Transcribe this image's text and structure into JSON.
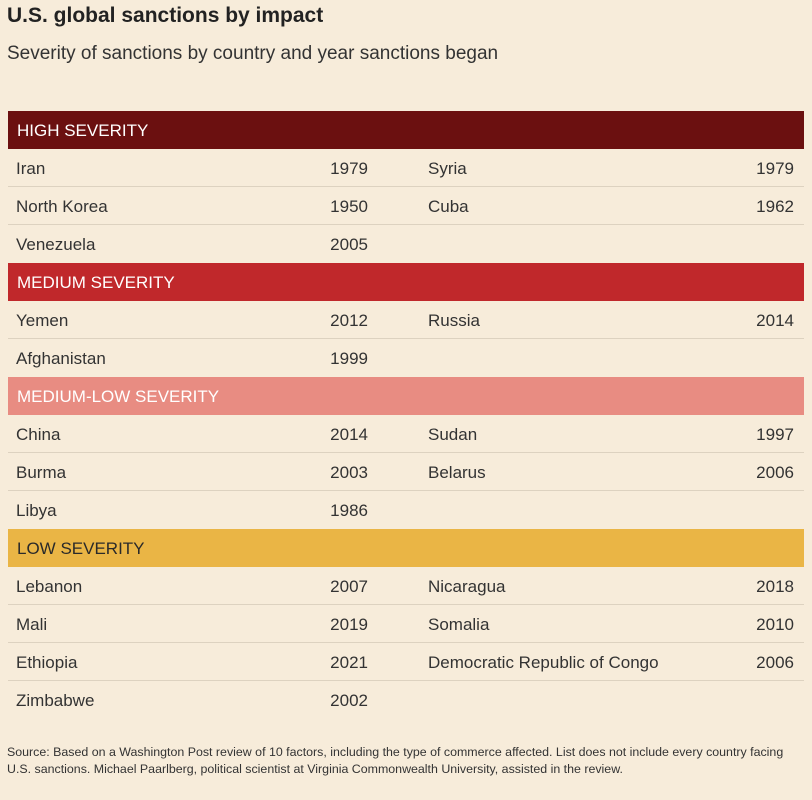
{
  "title": "U.S. global sanctions by impact",
  "subtitle": "Severity of sanctions by country and year sanctions began",
  "source": "Source: Based on a Washington Post review of 10 factors, including the type of commerce affected. List does not include every country facing U.S. sanctions. Michael Paarlberg, political scientist at Virginia Commonwealth University, assisted in the review.",
  "chart_data": {
    "type": "table",
    "title": "U.S. global sanctions by impact",
    "subtitle": "Severity of sanctions by country and year sanctions began",
    "groups": [
      {
        "label": "HIGH SEVERITY",
        "color": "#6b1010",
        "text_color": "#ffffff",
        "rows": [
          [
            {
              "country": "Iran",
              "year": "1979"
            },
            {
              "country": "Syria",
              "year": "1979"
            }
          ],
          [
            {
              "country": "North Korea",
              "year": "1950"
            },
            {
              "country": "Cuba",
              "year": "1962"
            }
          ],
          [
            {
              "country": "Venezuela",
              "year": "2005"
            }
          ]
        ]
      },
      {
        "label": "MEDIUM SEVERITY",
        "color": "#c0282b",
        "text_color": "#ffffff",
        "rows": [
          [
            {
              "country": "Yemen",
              "year": "2012"
            },
            {
              "country": "Russia",
              "year": "2014"
            }
          ],
          [
            {
              "country": "Afghanistan",
              "year": "1999"
            }
          ]
        ]
      },
      {
        "label": "MEDIUM-LOW SEVERITY",
        "color": "#e88c82",
        "text_color": "#ffffff",
        "rows": [
          [
            {
              "country": "China",
              "year": "2014"
            },
            {
              "country": "Sudan",
              "year": "1997"
            }
          ],
          [
            {
              "country": "Burma",
              "year": "2003"
            },
            {
              "country": "Belarus",
              "year": "2006"
            }
          ],
          [
            {
              "country": "Libya",
              "year": "1986"
            }
          ]
        ]
      },
      {
        "label": "LOW SEVERITY",
        "color": "#eab545",
        "text_color": "#2a2a2a",
        "rows": [
          [
            {
              "country": "Lebanon",
              "year": "2007"
            },
            {
              "country": "Nicaragua",
              "year": "2018"
            }
          ],
          [
            {
              "country": "Mali",
              "year": "2019"
            },
            {
              "country": "Somalia",
              "year": "2010"
            }
          ],
          [
            {
              "country": "Ethiopia",
              "year": "2021"
            },
            {
              "country": "Democratic Republic of Congo",
              "year": "2006"
            }
          ],
          [
            {
              "country": "Zimbabwe",
              "year": "2002"
            }
          ]
        ]
      }
    ]
  }
}
